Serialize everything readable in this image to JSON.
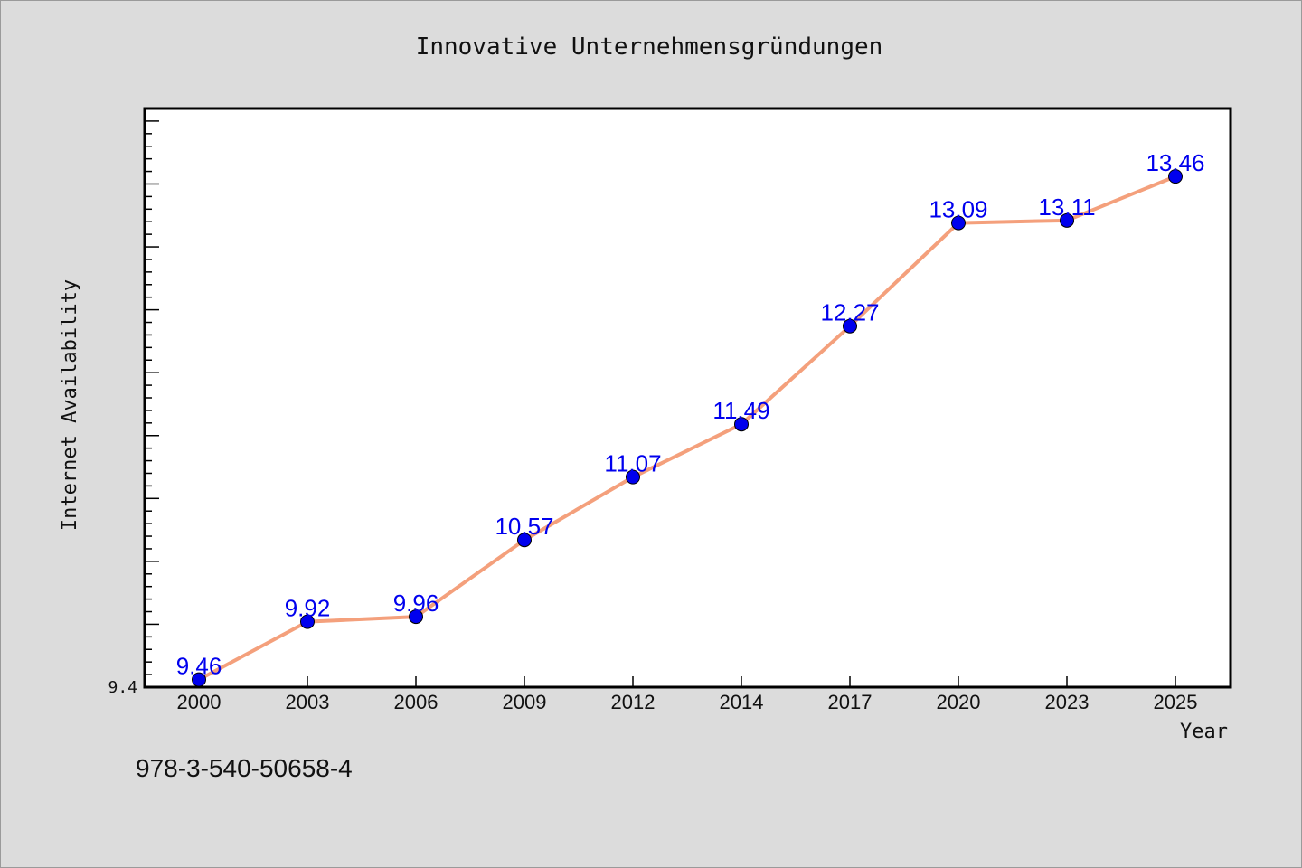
{
  "chart_data": {
    "type": "line",
    "title": "Innovative Unternehmensgründungen",
    "xlabel": "Year",
    "ylabel": "Internet Availability",
    "categories": [
      "2000",
      "2003",
      "2006",
      "2009",
      "2012",
      "2014",
      "2017",
      "2020",
      "2023",
      "2025"
    ],
    "series": [
      {
        "values": [
          9.46,
          9.92,
          9.96,
          10.57,
          11.07,
          11.49,
          12.27,
          13.09,
          13.11,
          13.46
        ],
        "data_labels": [
          "9.46",
          "9.92",
          "9.96",
          "10.57",
          "11.07",
          "11.49",
          "12.27",
          "13.09",
          "13.11",
          "13.46"
        ]
      }
    ],
    "ytick_labels": [
      "9.4"
    ],
    "ylim": [
      9.4,
      14.0
    ],
    "grid": false,
    "line_color": "#f4a07c",
    "marker_color": "#0000ee",
    "label_color": "#0000ee"
  },
  "footer": {
    "code": "978-3-540-50658-4"
  }
}
